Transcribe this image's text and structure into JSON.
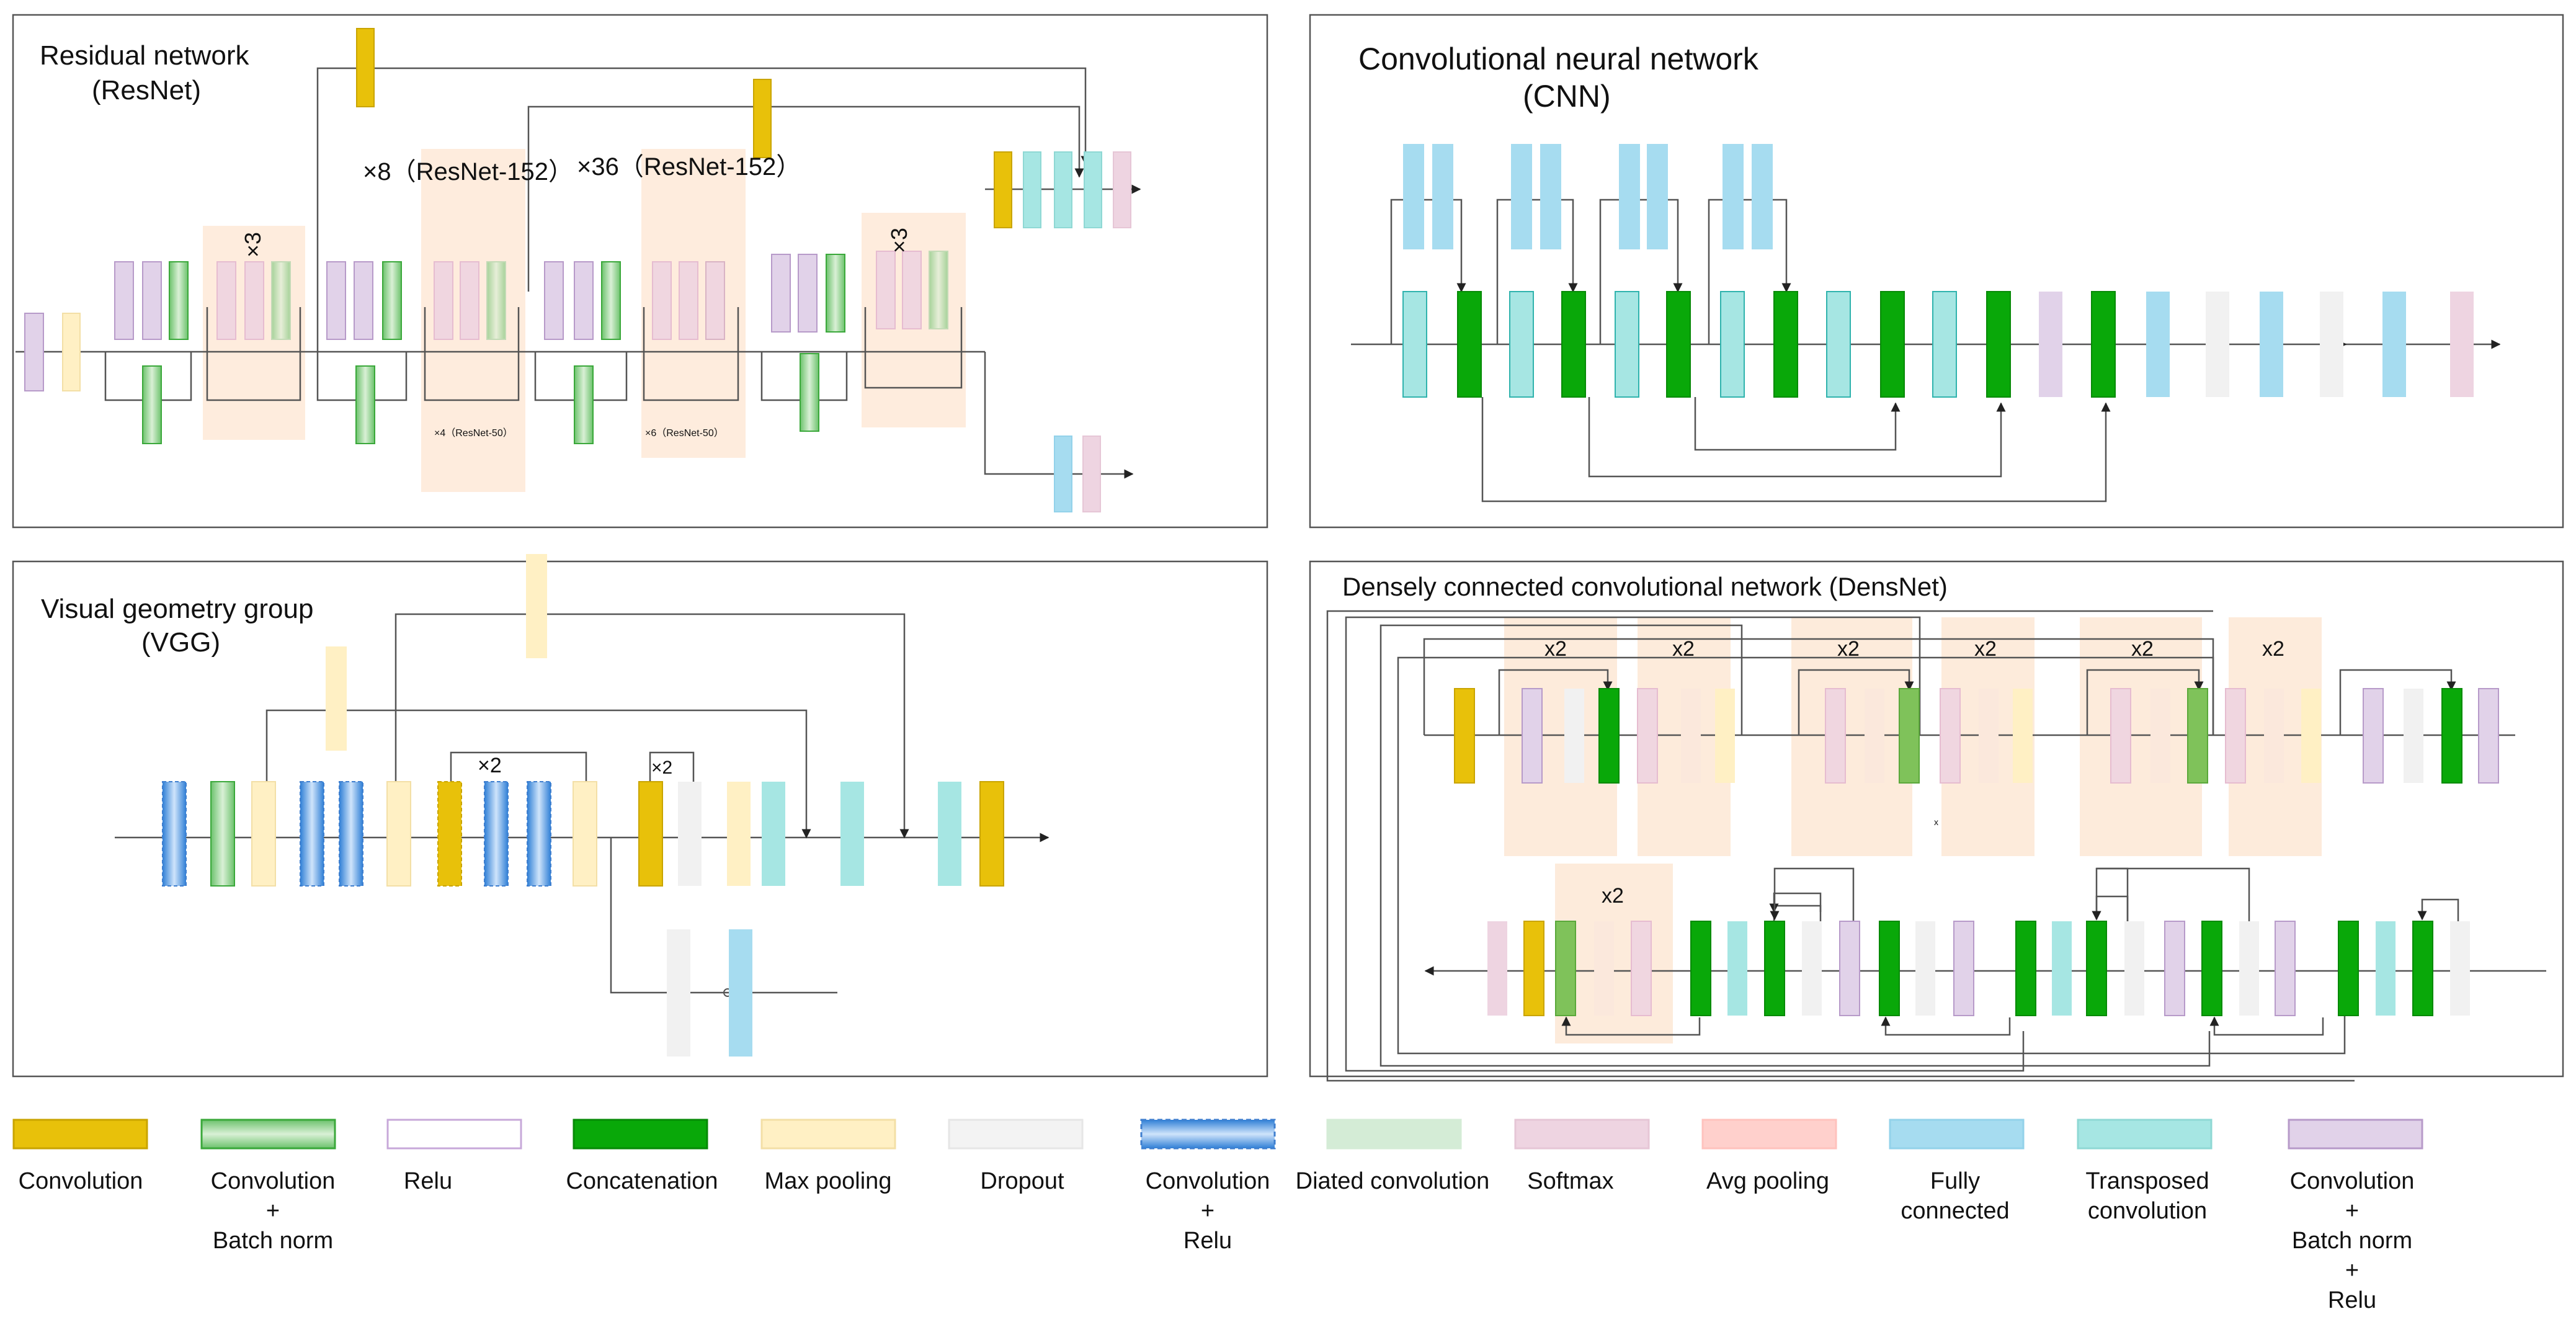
{
  "panels": {
    "resnet": {
      "title": "Residual network",
      "subtitle": "(ResNet)",
      "rep_a": "×3",
      "rep_b": "×8（ResNet-152）",
      "rep_c": "×36（ResNet-152）",
      "rep_d": "×3",
      "note_a": "×4（ResNet-50）",
      "note_b": "×6（ResNet-50）"
    },
    "cnn": {
      "title": "Convolutional neural network",
      "subtitle": "(CNN)"
    },
    "vgg": {
      "title": "Visual geometry group",
      "subtitle": "(VGG)",
      "rep_a": "×2",
      "rep_b": "×2"
    },
    "densenet": {
      "title": "Densely connected convolutional network (DensNet)",
      "rep": "x2",
      "mark": "x"
    }
  },
  "legend": [
    {
      "key": "conv",
      "label": "Convolution",
      "fill": "#e8c10a",
      "stroke": "#c9a400"
    },
    {
      "key": "convbn",
      "label": "Convolution\n+\nBatch norm",
      "fill": "#9fd49a",
      "stroke": "#3aa83a",
      "gradient": true
    },
    {
      "key": "relu",
      "label": "Relu",
      "fill": "#ffffff",
      "stroke": "#c7a8d9"
    },
    {
      "key": "concat",
      "label": "Concatenation",
      "fill": "#09a809",
      "stroke": "#078a07"
    },
    {
      "key": "maxpool",
      "label": "Max pooling",
      "fill": "#fff0c4",
      "stroke": "#f3dfa6"
    },
    {
      "key": "dropout",
      "label": "Dropout",
      "fill": "#f3f3f3",
      "stroke": "#e6e6e6"
    },
    {
      "key": "convrelu",
      "label": "Convolution\n+\nRelu",
      "fill": "#7fb3ea",
      "stroke": "#3f7fcf",
      "dashed": true
    },
    {
      "key": "dilated",
      "label": "Diated convolution",
      "fill": "#d4ecd6",
      "stroke": "#d4ecd6"
    },
    {
      "key": "softmax",
      "label": "Softmax",
      "fill": "#eed4e1",
      "stroke": "#e6c6d6"
    },
    {
      "key": "avgpool",
      "label": "Avg pooling",
      "fill": "#ffd0cc",
      "stroke": "#ffc2bd"
    },
    {
      "key": "fc",
      "label": "Fully\nconnected",
      "fill": "#a6dcf0",
      "stroke": "#93d2ea"
    },
    {
      "key": "transconv",
      "label": "Transposed\nconvolution",
      "fill": "#a6e6e3",
      "stroke": "#8fd8d4"
    },
    {
      "key": "cbr",
      "label": "Convolution\n+\nBatch norm\n+\nRelu",
      "fill": "#e1d2e9",
      "stroke": "#b79ac9"
    }
  ]
}
